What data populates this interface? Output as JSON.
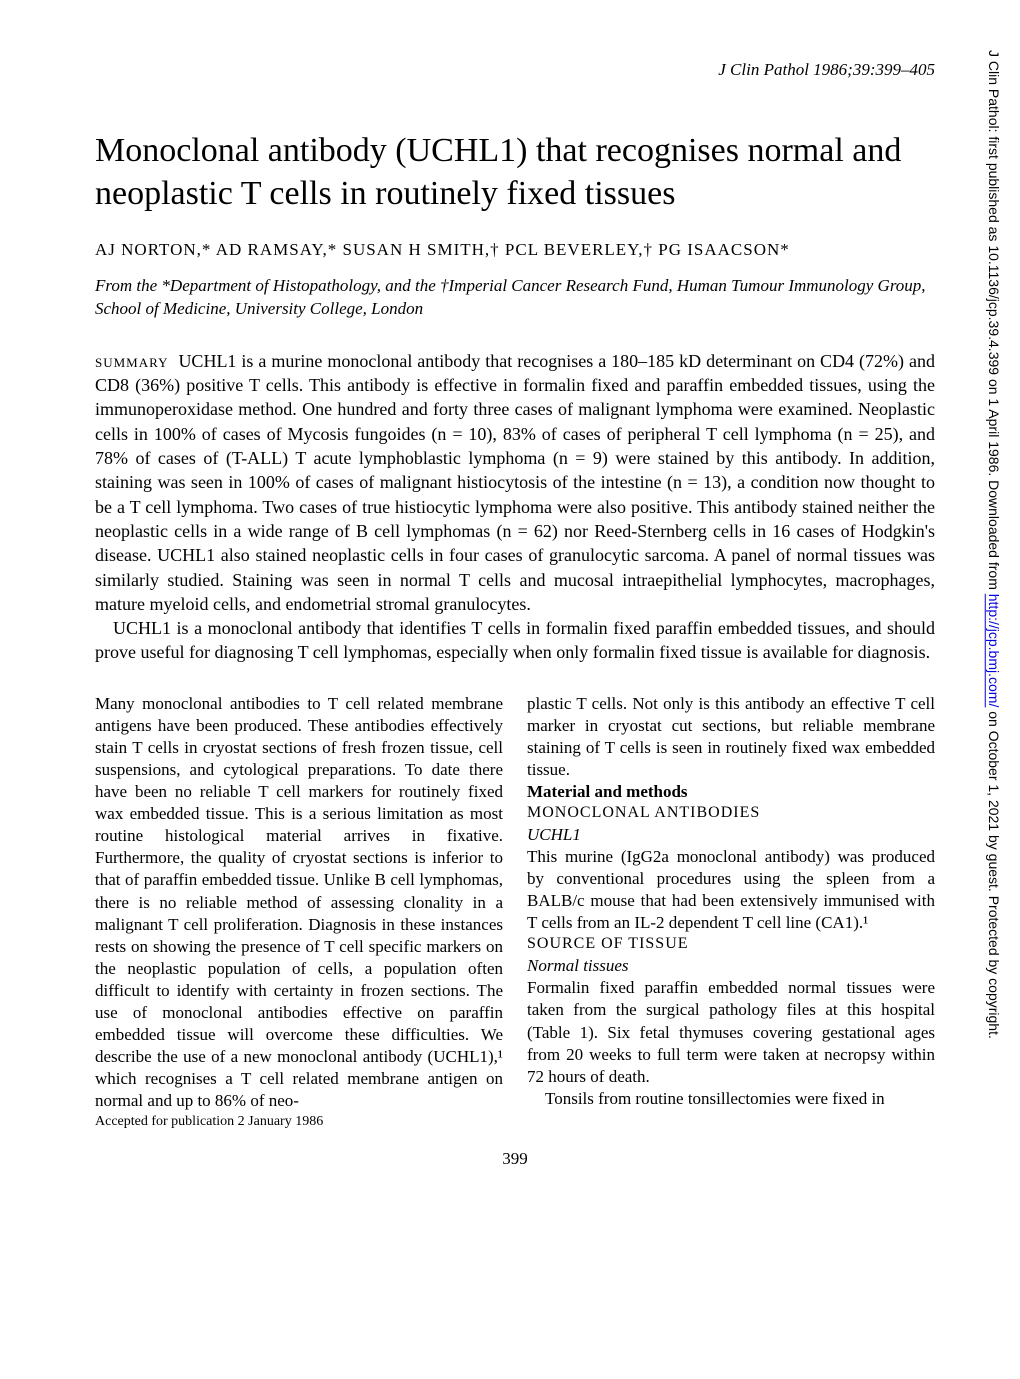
{
  "journal_ref": "J Clin Pathol 1986;39:399–405",
  "title": "Monoclonal antibody (UCHL1) that recognises normal and neoplastic T cells in routinely fixed tissues",
  "authors": "AJ NORTON,*  AD RAMSAY,*  SUSAN H SMITH,†  PCL BEVERLEY,†  PG ISAACSON*",
  "affiliation": "From the *Department of Histopathology, and the †Imperial Cancer Research Fund, Human Tumour Immunology Group, School of Medicine, University College, London",
  "summary_label": "summary",
  "summary_p1": "UCHL1 is a murine monoclonal antibody that recognises a 180–185 kD determinant on CD4 (72%) and CD8 (36%) positive T cells. This antibody is effective in formalin fixed and paraffin embedded tissues, using the immunoperoxidase method. One hundred and forty three cases of malignant lymphoma were examined. Neoplastic cells in 100% of cases of Mycosis fungoides (n = 10), 83% of cases of peripheral T cell lymphoma (n = 25), and 78% of cases of (T-ALL) T acute lymphoblastic lymphoma (n = 9) were stained by this antibody. In addition, staining was seen in 100% of cases of malignant histiocytosis of the intestine (n = 13), a condition now thought to be a T cell lymphoma. Two cases of true histiocytic lymphoma were also positive. This antibody stained neither the neoplastic cells in a wide range of B cell lymphomas (n = 62) nor Reed-Sternberg cells in 16 cases of Hodgkin's disease. UCHL1 also stained neoplastic cells in four cases of granulocytic sarcoma. A panel of normal tissues was similarly studied. Staining was seen in normal T cells and mucosal intraepithelial lymphocytes, macrophages, mature myeloid cells, and endometrial stromal granulocytes.",
  "summary_p2": "UCHL1 is a monoclonal antibody that identifies T cells in formalin fixed paraffin embedded tissues, and should prove useful for diagnosing T cell lymphomas, especially when only formalin fixed tissue is available for diagnosis.",
  "left_col": {
    "p1": "Many monoclonal antibodies to T cell related membrane antigens have been produced. These antibodies effectively stain T cells in cryostat sections of fresh frozen tissue, cell suspensions, and cytological preparations. To date there have been no reliable T cell markers for routinely fixed wax embedded tissue. This is a serious limitation as most routine histological material arrives in fixative. Furthermore, the quality of cryostat sections is inferior to that of paraffin embedded tissue. Unlike B cell lymphomas, there is no reliable method of assessing clonality in a malignant T cell proliferation. Diagnosis in these instances rests on showing the presence of T cell specific markers on the neoplastic population of cells, a population often difficult to identify with certainty in frozen sections. The use of monoclonal antibodies effective on paraffin embedded tissue will overcome these difficulties. We describe the use of a new monoclonal antibody (UCHL1),¹ which recognises a T cell related membrane antigen on normal and up to 86% of neo-",
    "accepted": "Accepted for publication 2 January 1986"
  },
  "right_col": {
    "p1": "plastic T cells. Not only is this antibody an effective T cell marker in cryostat cut sections, but reliable membrane staining of T cells is seen in routinely fixed wax embedded tissue.",
    "heading_mm": "Material and methods",
    "sub_mab": "MONOCLONAL ANTIBODIES",
    "sub_uchl1": "UCHL1",
    "p2": "This murine (IgG2a monoclonal antibody) was produced by conventional procedures using the spleen from a BALB/c mouse that had been extensively immunised with T cells from an IL-2 dependent T cell line (CA1).¹",
    "sub_source": "SOURCE OF TISSUE",
    "sub_normal": "Normal tissues",
    "p3": "Formalin fixed paraffin embedded normal tissues were taken from the surgical pathology files at this hospital (Table 1). Six fetal thymuses covering gestational ages from 20 weeks to full term were taken at necropsy within 72 hours of death.",
    "p4": "Tonsils from routine tonsillectomies were fixed in"
  },
  "page_number": "399",
  "sidebar": {
    "prefix": "J Clin Pathol: first published as 10.1136/jcp.39.4.399 on 1 April 1986. Downloaded from ",
    "link_text": "http://jcp.bmj.com/",
    "suffix": " on October 1, 2021 by guest. Protected by copyright."
  }
}
